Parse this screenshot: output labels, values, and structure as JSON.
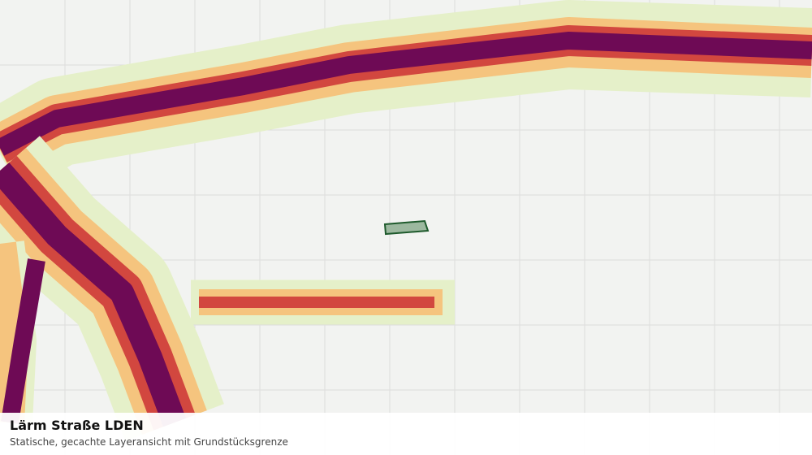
{
  "header": {
    "title": "Lärm Straße LDEN",
    "subtitle": "Statische, gecachte Layeransicht mit Grundstücksgrenze"
  }
}
